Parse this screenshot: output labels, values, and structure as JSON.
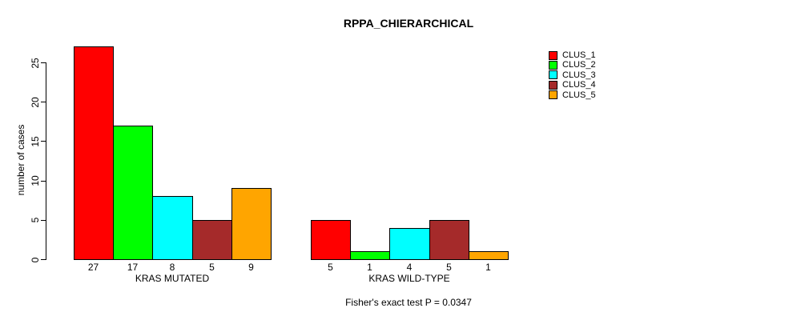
{
  "chart_data": {
    "type": "bar",
    "title": "RPPA_CHIERARCHICAL",
    "ylabel": "number of cases",
    "xlabel": "",
    "annotation": "Fisher's exact test P = 0.0347",
    "groups": [
      "KRAS MUTATED",
      "KRAS WILD-TYPE"
    ],
    "series": [
      {
        "name": "CLUS_1",
        "color": "#ff0000",
        "values": [
          27,
          5
        ]
      },
      {
        "name": "CLUS_2",
        "color": "#00ff00",
        "values": [
          17,
          1
        ]
      },
      {
        "name": "CLUS_3",
        "color": "#00ffff",
        "values": [
          8,
          4
        ]
      },
      {
        "name": "CLUS_4",
        "color": "#a52a2a",
        "values": [
          5,
          5
        ]
      },
      {
        "name": "CLUS_5",
        "color": "#ffa500",
        "values": [
          9,
          1
        ]
      }
    ],
    "yticks": [
      0,
      5,
      10,
      15,
      20,
      25
    ],
    "ylim": [
      0,
      27
    ],
    "bar_value_labels_shown": true,
    "legend_position": "top-right",
    "grid": false,
    "background_color": "#ffffff",
    "axis_color": "#000000"
  }
}
